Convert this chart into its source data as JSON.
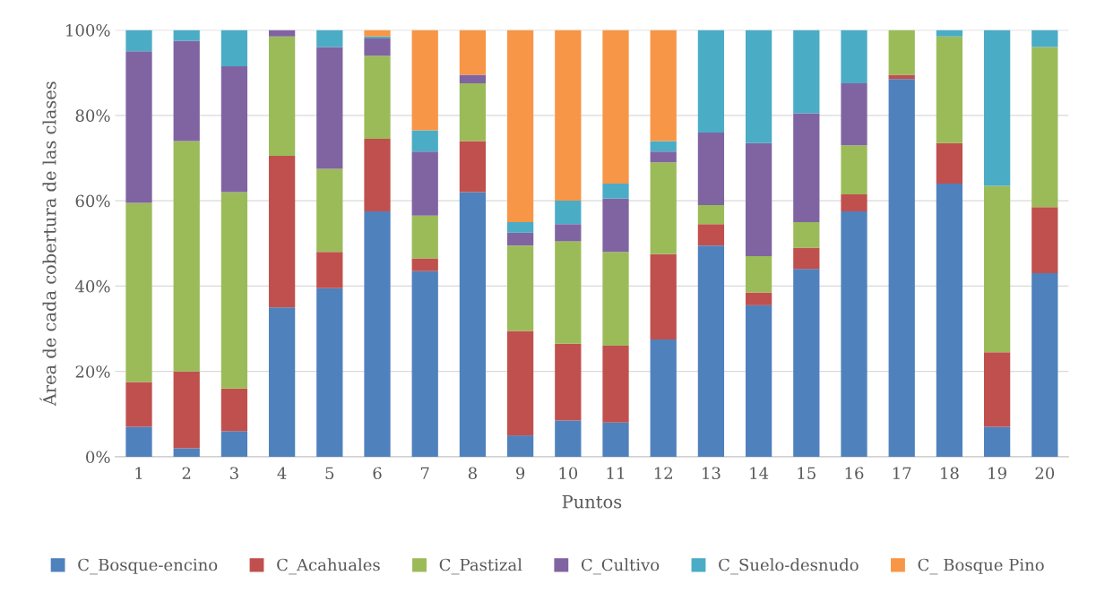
{
  "chart_data": {
    "type": "bar",
    "stacked": true,
    "xlabel": "Puntos",
    "ylabel": "Área de cada cobertura de las clases",
    "categories": [
      "1",
      "2",
      "3",
      "4",
      "5",
      "6",
      "7",
      "8",
      "9",
      "10",
      "11",
      "12",
      "13",
      "14",
      "15",
      "16",
      "17",
      "18",
      "19",
      "20"
    ],
    "series": [
      {
        "name": "C_Bosque-encino",
        "color": "#4f81bd",
        "values": [
          7,
          2,
          6,
          35,
          39.5,
          57.5,
          43.5,
          62,
          5,
          8.5,
          8,
          27.5,
          49.5,
          35.5,
          44,
          57.5,
          88.5,
          64,
          7,
          43
        ]
      },
      {
        "name": "C_Acahuales",
        "color": "#c0504d",
        "values": [
          10.5,
          18,
          10,
          35.5,
          8.5,
          17,
          3,
          12,
          24.5,
          18,
          18,
          20,
          5,
          3,
          5,
          4,
          1,
          9.5,
          17.5,
          15.5
        ]
      },
      {
        "name": "C_Pastizal",
        "color": "#9bbb59",
        "values": [
          42,
          54,
          46,
          28,
          19.5,
          19.5,
          10,
          13.5,
          20,
          24,
          22,
          21.5,
          4.5,
          8.5,
          6,
          11.5,
          10.5,
          25,
          39,
          37.5
        ]
      },
      {
        "name": "C_Cultivo",
        "color": "#8064a2",
        "values": [
          35.5,
          23.5,
          29.5,
          1.5,
          28.5,
          4,
          15,
          2,
          3,
          4,
          12.5,
          2.5,
          17,
          26.5,
          25.5,
          14.5,
          0,
          0,
          0,
          0
        ]
      },
      {
        "name": "C_Suelo-desnudo",
        "color": "#4bacc6",
        "values": [
          5,
          2.5,
          8.5,
          0,
          4,
          0.5,
          5,
          0,
          2.5,
          5.5,
          3.5,
          2.5,
          24,
          26.5,
          19.5,
          12.5,
          0,
          1.5,
          36.5,
          4
        ]
      },
      {
        "name": "C_ Bosque Pino",
        "color": "#f79646",
        "values": [
          0,
          0,
          0,
          0,
          0,
          1.5,
          23.5,
          10.5,
          45,
          40,
          36,
          26,
          0,
          0,
          0,
          0,
          0,
          0,
          0,
          0
        ]
      }
    ],
    "ylim": [
      0,
      100
    ],
    "yticks": [
      {
        "value": 0,
        "label": "0%"
      },
      {
        "value": 20,
        "label": "20%"
      },
      {
        "value": 40,
        "label": "40%"
      },
      {
        "value": 60,
        "label": "60%"
      },
      {
        "value": 80,
        "label": "80%"
      },
      {
        "value": 100,
        "label": "100%"
      }
    ],
    "grid": "y",
    "legend": "bottom"
  }
}
